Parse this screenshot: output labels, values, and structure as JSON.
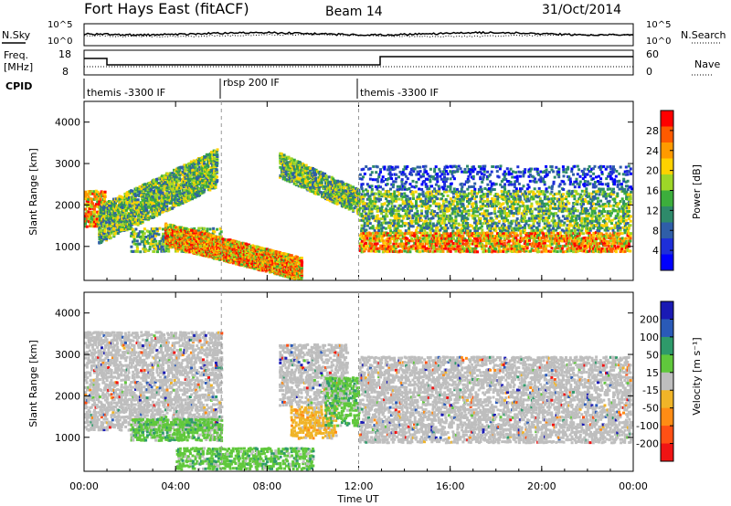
{
  "header": {
    "station": "Fort Hays East (fitACF)",
    "beam": "Beam 14",
    "date": "31/Oct/2014"
  },
  "noise_panel": {
    "left_label": "N.Sky",
    "right_label": "N.Search",
    "left_ticks": [
      "10^5",
      "10^0"
    ],
    "right_ticks": [
      "10^5",
      "10^0"
    ]
  },
  "freq_panel": {
    "left_label_1": "Freq.",
    "left_label_2": "[MHz]",
    "left_ticks": [
      "18",
      "8"
    ],
    "right_label": "Nave",
    "right_ticks": [
      "60",
      "0"
    ]
  },
  "cpid": {
    "label": "CPID",
    "segments": [
      {
        "name": "themis -3300 IF",
        "start_hour": 0,
        "end_hour": 6
      },
      {
        "name": "rbsp 200 IF",
        "start_hour": 6,
        "end_hour": 12
      },
      {
        "name": "themis -3300 IF",
        "start_hour": 12,
        "end_hour": 24
      }
    ]
  },
  "axes": {
    "ylabel": "Slant Range [km]",
    "xlabel": "Time UT",
    "x_ticks": [
      "00:00",
      "04:00",
      "08:00",
      "12:00",
      "16:00",
      "20:00",
      "00:00"
    ],
    "y_ticks": [
      "1000",
      "2000",
      "3000",
      "4000"
    ]
  },
  "power_colorbar": {
    "label": "Power [dB]",
    "ticks": [
      "28",
      "24",
      "20",
      "16",
      "12",
      "8",
      "4"
    ],
    "colors": [
      "#ff0000",
      "#ff5a00",
      "#ff9a00",
      "#ffd200",
      "#9ed628",
      "#3cae3c",
      "#2e8a6a",
      "#2f5ea8",
      "#1e2fd8",
      "#0000ff"
    ]
  },
  "velocity_colorbar": {
    "label": "Velocity [m s⁻¹]",
    "ticks": [
      "200",
      "100",
      "50",
      "15",
      "-15",
      "-50",
      "-100",
      "-200"
    ],
    "colors": [
      "#1a1ab4",
      "#2a5ab8",
      "#2e9a6a",
      "#60c83c",
      "#bebebe",
      "#f0b428",
      "#ff8c14",
      "#ff5014",
      "#f01414"
    ]
  },
  "chart_data": [
    {
      "type": "heatmap",
      "title": "Power",
      "x_range_hours": [
        0,
        24
      ],
      "y_range_km": [
        180,
        4500
      ],
      "regions": [
        {
          "t0": 0.0,
          "t1": 0.9,
          "r0": 1500,
          "r1": 2400,
          "level": "high"
        },
        {
          "t0": 0.6,
          "t1": 5.8,
          "r0": 1100,
          "r1": 3400,
          "level": "mid",
          "trend": "rising"
        },
        {
          "t0": 2.0,
          "t1": 6.0,
          "r0": 900,
          "r1": 1500,
          "level": "mid"
        },
        {
          "t0": 3.5,
          "t1": 9.5,
          "r0": 200,
          "r1": 1600,
          "level": "high",
          "trend": "falling"
        },
        {
          "t0": 8.5,
          "t1": 12.0,
          "r0": 1800,
          "r1": 3300,
          "level": "mid",
          "trend": "falling"
        },
        {
          "t0": 12.0,
          "t1": 24.0,
          "r0": 900,
          "r1": 1400,
          "level": "high"
        },
        {
          "t0": 12.0,
          "t1": 24.0,
          "r0": 1400,
          "r1": 2400,
          "level": "mid"
        },
        {
          "t0": 12.0,
          "t1": 24.0,
          "r0": 2400,
          "r1": 3000,
          "level": "low"
        }
      ]
    },
    {
      "type": "heatmap",
      "title": "Velocity",
      "x_range_hours": [
        0,
        24
      ],
      "y_range_km": [
        180,
        4500
      ],
      "regions": [
        {
          "t0": 0.0,
          "t1": 6.0,
          "r0": 1200,
          "r1": 3600,
          "velocity": "near-zero"
        },
        {
          "t0": 2.0,
          "t1": 6.0,
          "r0": 950,
          "r1": 1500,
          "velocity": "positive"
        },
        {
          "t0": 4.0,
          "t1": 10.0,
          "r0": 200,
          "r1": 800,
          "velocity": "positive"
        },
        {
          "t0": 8.5,
          "t1": 11.5,
          "r0": 1800,
          "r1": 3300,
          "velocity": "near-zero"
        },
        {
          "t0": 9.0,
          "t1": 11.0,
          "r0": 1000,
          "r1": 1800,
          "velocity": "negative"
        },
        {
          "t0": 10.5,
          "t1": 12.0,
          "r0": 1300,
          "r1": 2500,
          "velocity": "positive"
        },
        {
          "t0": 12.0,
          "t1": 24.0,
          "r0": 900,
          "r1": 3000,
          "velocity": "near-zero"
        }
      ]
    }
  ]
}
